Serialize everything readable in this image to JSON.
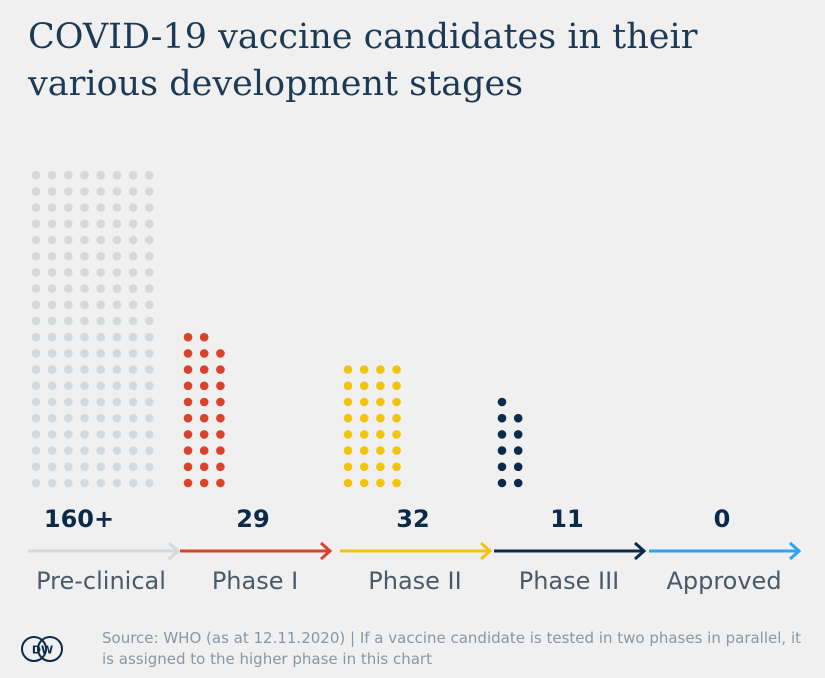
{
  "title": "COVID-19 vaccine candidates in their various development stages",
  "source": "Source: WHO (as at 12.11.2020) | If a vaccine candidate is tested in two phases in parallel, it is assigned to the higher phase in this chart",
  "logo_text": "DW",
  "colors": {
    "background": "#f0f0f0",
    "preclinical": "#d4d9dd",
    "phase1": "#d9432a",
    "phase2": "#f2c40f",
    "phase3": "#0c2a4c",
    "approved": "#2aa5ee",
    "title": "#1c3a56"
  },
  "chart_data": {
    "type": "dot-plot",
    "categories": [
      "Pre-clinical",
      "Phase I",
      "Phase II",
      "Phase III",
      "Approved"
    ],
    "value_labels": [
      "160+",
      "29",
      "32",
      "11",
      "0"
    ],
    "values": [
      160,
      29,
      32,
      11,
      0
    ]
  }
}
